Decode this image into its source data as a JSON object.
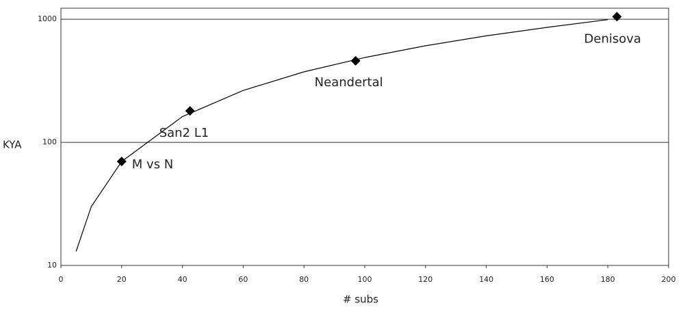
{
  "chart_data": {
    "type": "scatter",
    "x_label": "# subs",
    "y_label": "KYA",
    "xlim": [
      0,
      200
    ],
    "xticks": [
      0,
      20,
      40,
      60,
      80,
      100,
      120,
      140,
      160,
      180,
      200
    ],
    "ylim": [
      10,
      1230
    ],
    "yticks": [
      10,
      100,
      1000
    ],
    "yscale": "log",
    "grid": true,
    "points": {
      "color": "#000000",
      "x": [
        20,
        42.5,
        97,
        183
      ],
      "values": [
        70,
        180,
        460,
        1050
      ],
      "labels": [
        "M vs N",
        "San2 L1",
        "Neandertal",
        "Denisova"
      ]
    },
    "trend": {
      "color": "#000000",
      "x": [
        5,
        10,
        20,
        40,
        60,
        80,
        100,
        120,
        140,
        160,
        180
      ],
      "values": [
        13,
        30.1,
        69.9,
        162,
        264,
        374,
        489,
        609,
        733,
        860,
        993
      ]
    }
  }
}
